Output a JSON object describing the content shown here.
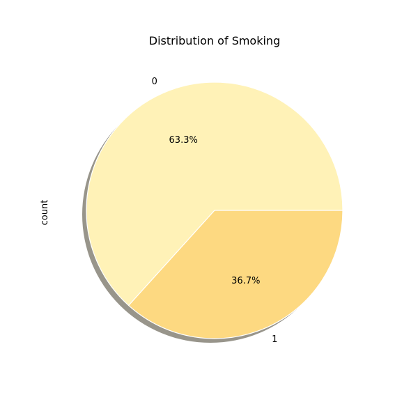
{
  "chart_data": {
    "type": "pie",
    "title": "Distribution of Smoking",
    "ylabel": "count",
    "categories": [
      "0",
      "1"
    ],
    "values": [
      63.3,
      36.7
    ],
    "percent_labels": [
      "63.3%",
      "36.7%"
    ],
    "colors": [
      "#fff2b7",
      "#fdd981"
    ],
    "shadow": true,
    "start_angle": 0,
    "direction": "counterclockwise"
  }
}
